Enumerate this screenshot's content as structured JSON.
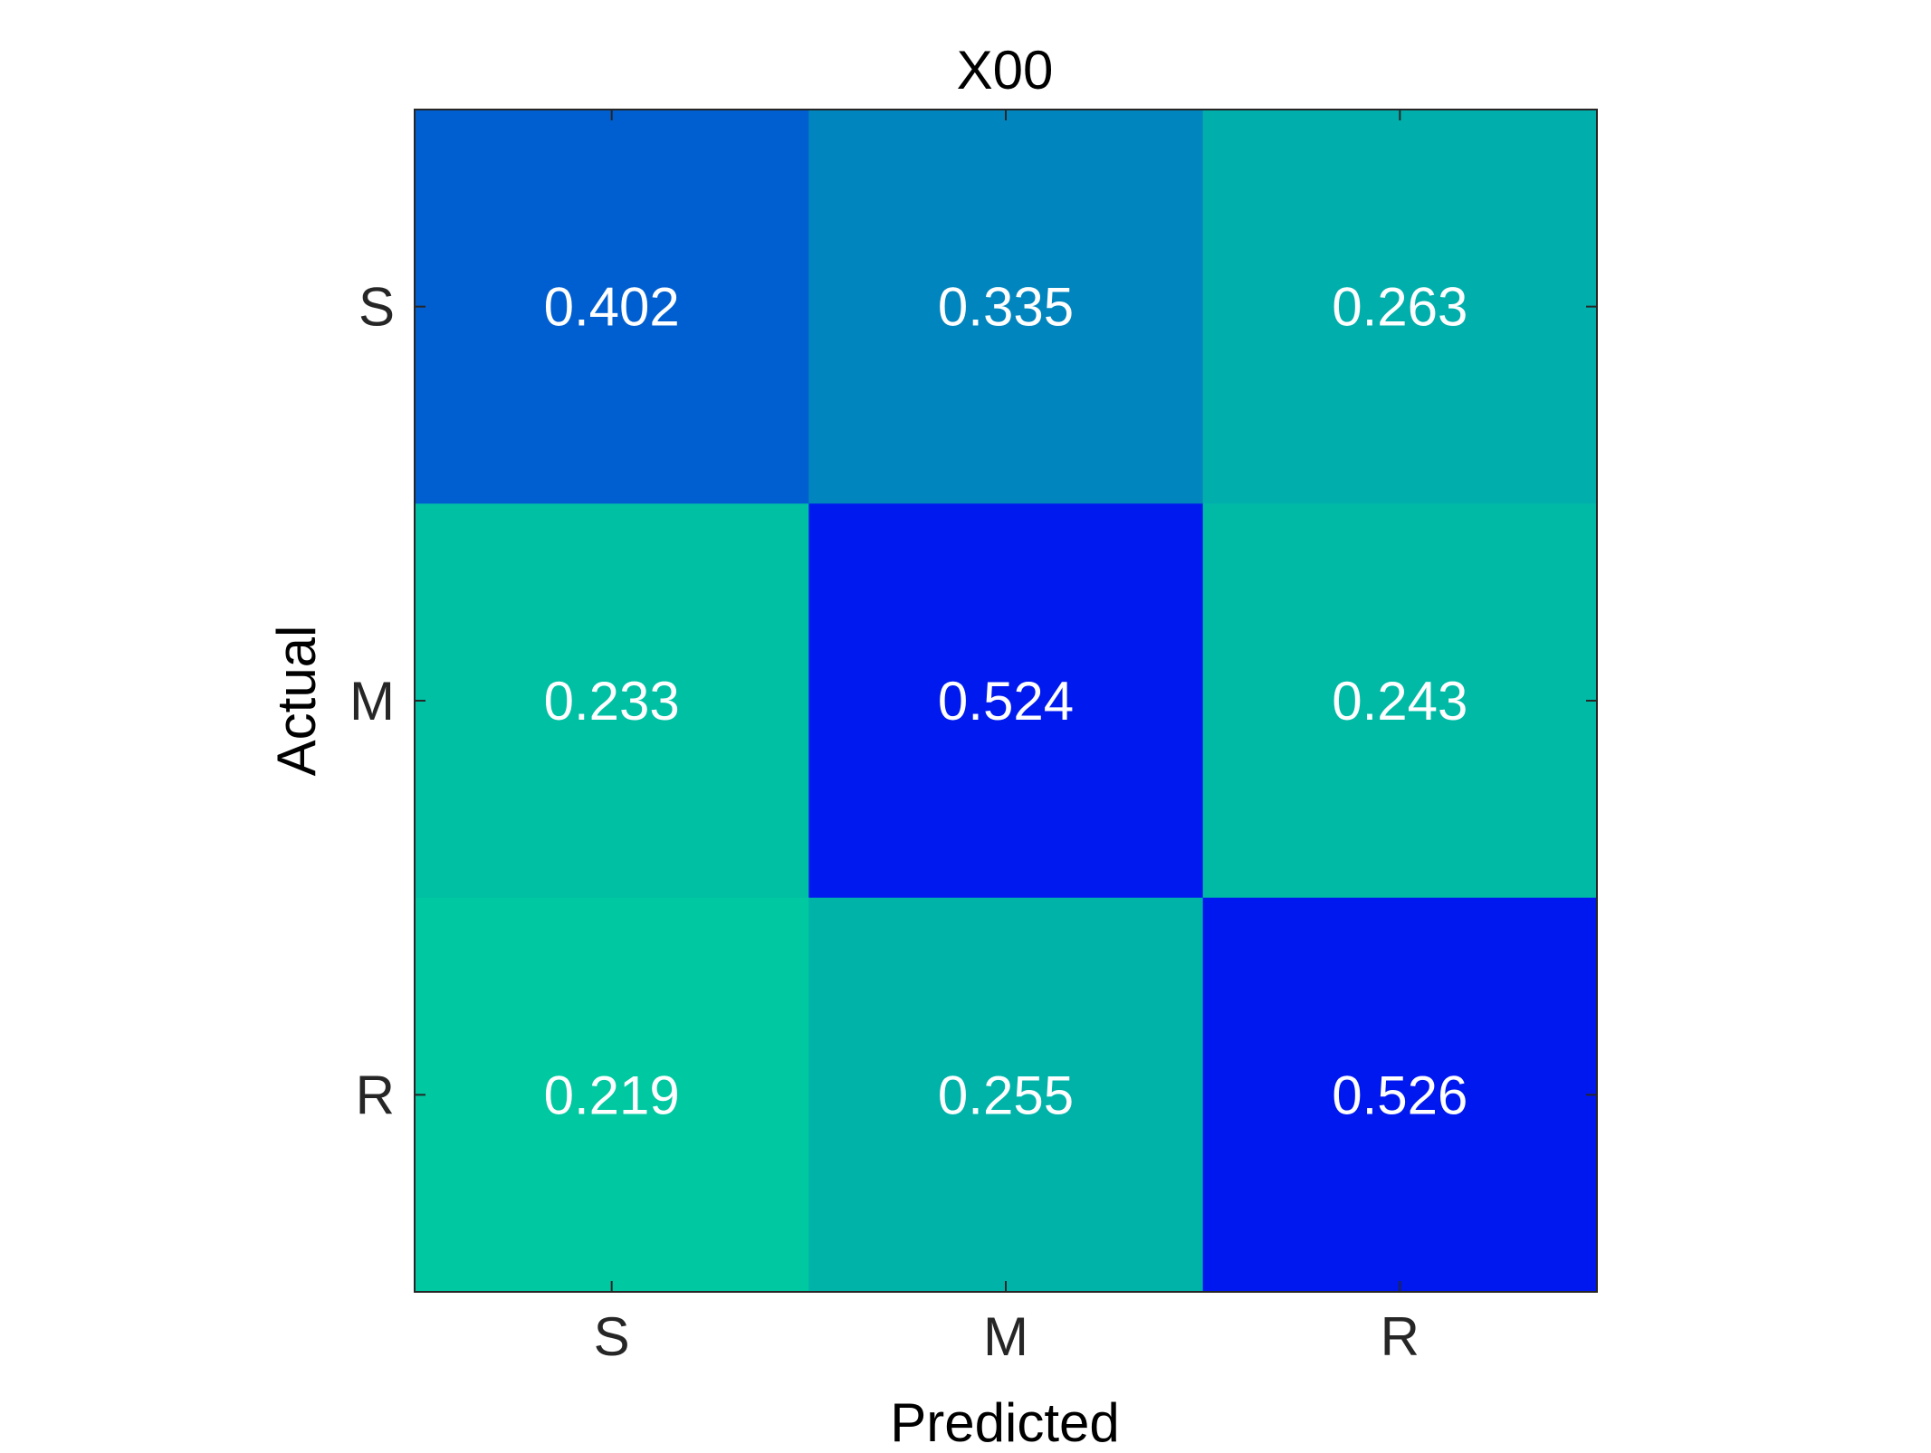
{
  "chart_data": {
    "type": "heatmap",
    "title": "X00",
    "xlabel": "Predicted",
    "ylabel": "Actual",
    "x_categories": [
      "S",
      "M",
      "R"
    ],
    "y_categories": [
      "S",
      "M",
      "R"
    ],
    "values": [
      [
        0.402,
        0.335,
        0.263
      ],
      [
        0.233,
        0.524,
        0.243
      ],
      [
        0.219,
        0.255,
        0.526
      ]
    ],
    "value_labels": [
      [
        "0.402",
        "0.335",
        "0.263"
      ],
      [
        "0.233",
        "0.524",
        "0.243"
      ],
      [
        "0.219",
        "0.255",
        "0.526"
      ]
    ],
    "colormap": {
      "low": "#00C8A0",
      "high": "#0018F0",
      "range": [
        0.219,
        0.526
      ]
    },
    "cell_text_color": "#FFFFFF",
    "grid": false,
    "colorbar": false
  }
}
